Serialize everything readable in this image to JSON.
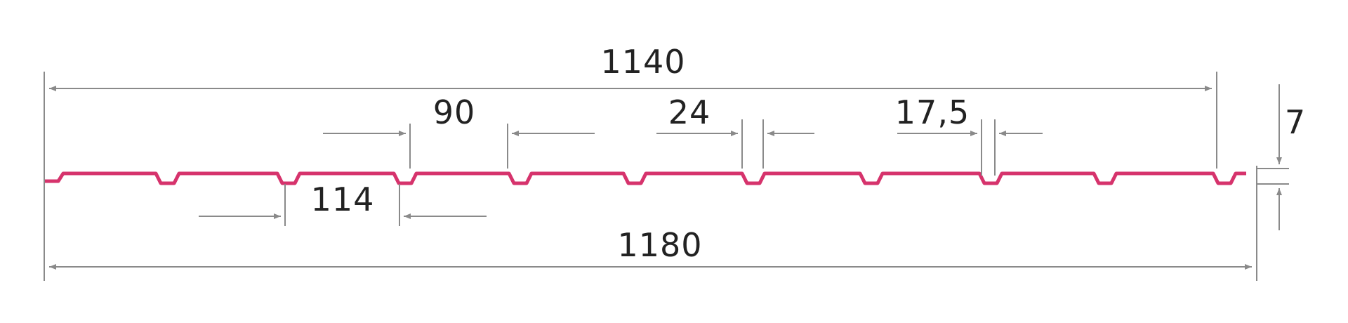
{
  "diagram": {
    "dimensions": {
      "overall_top": "1140",
      "rib_top_width": "90",
      "rib_bottom_width": "24",
      "rib_small": "17,5",
      "pitch": "114",
      "overall_bottom": "1180",
      "height": "7"
    },
    "colors": {
      "profile": "#d6336c",
      "dimension_lines": "#8a8a8a",
      "text": "#222222",
      "background": "#ffffff"
    }
  }
}
